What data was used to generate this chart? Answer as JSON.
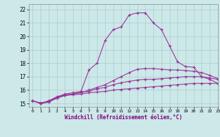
{
  "xlabel": "Windchill (Refroidissement éolien,°C)",
  "bg_color": "#cce8e8",
  "line_color": "#993399",
  "grid_color": "#aacccc",
  "xlim": [
    -0.5,
    23
  ],
  "ylim": [
    14.75,
    22.4
  ],
  "xticks": [
    0,
    1,
    2,
    3,
    4,
    5,
    6,
    7,
    8,
    9,
    10,
    11,
    12,
    13,
    14,
    15,
    16,
    17,
    18,
    19,
    20,
    21,
    22,
    23
  ],
  "yticks": [
    15,
    16,
    17,
    18,
    19,
    20,
    21,
    22
  ],
  "series": [
    [
      15.2,
      15.0,
      15.1,
      15.4,
      15.6,
      15.65,
      15.7,
      15.8,
      15.85,
      15.9,
      16.0,
      16.05,
      16.1,
      16.15,
      16.2,
      16.25,
      16.3,
      16.35,
      16.4,
      16.45,
      16.5,
      16.5,
      16.5,
      16.5
    ],
    [
      15.2,
      15.0,
      15.2,
      15.4,
      15.6,
      15.7,
      15.85,
      15.9,
      16.1,
      16.2,
      16.4,
      16.55,
      16.65,
      16.75,
      16.8,
      16.8,
      16.85,
      16.9,
      16.95,
      17.0,
      17.0,
      17.0,
      16.9,
      16.8
    ],
    [
      15.2,
      15.05,
      15.15,
      15.45,
      15.65,
      15.7,
      15.8,
      16.0,
      16.2,
      16.4,
      16.7,
      17.0,
      17.3,
      17.55,
      17.6,
      17.6,
      17.55,
      17.5,
      17.5,
      17.45,
      17.4,
      17.3,
      17.1,
      16.85
    ],
    [
      15.2,
      15.0,
      15.2,
      15.5,
      15.7,
      15.8,
      15.9,
      17.5,
      18.0,
      19.7,
      20.5,
      20.7,
      21.6,
      21.75,
      21.75,
      21.0,
      20.5,
      19.3,
      18.1,
      17.75,
      17.7,
      17.0,
      16.8,
      16.5
    ]
  ]
}
